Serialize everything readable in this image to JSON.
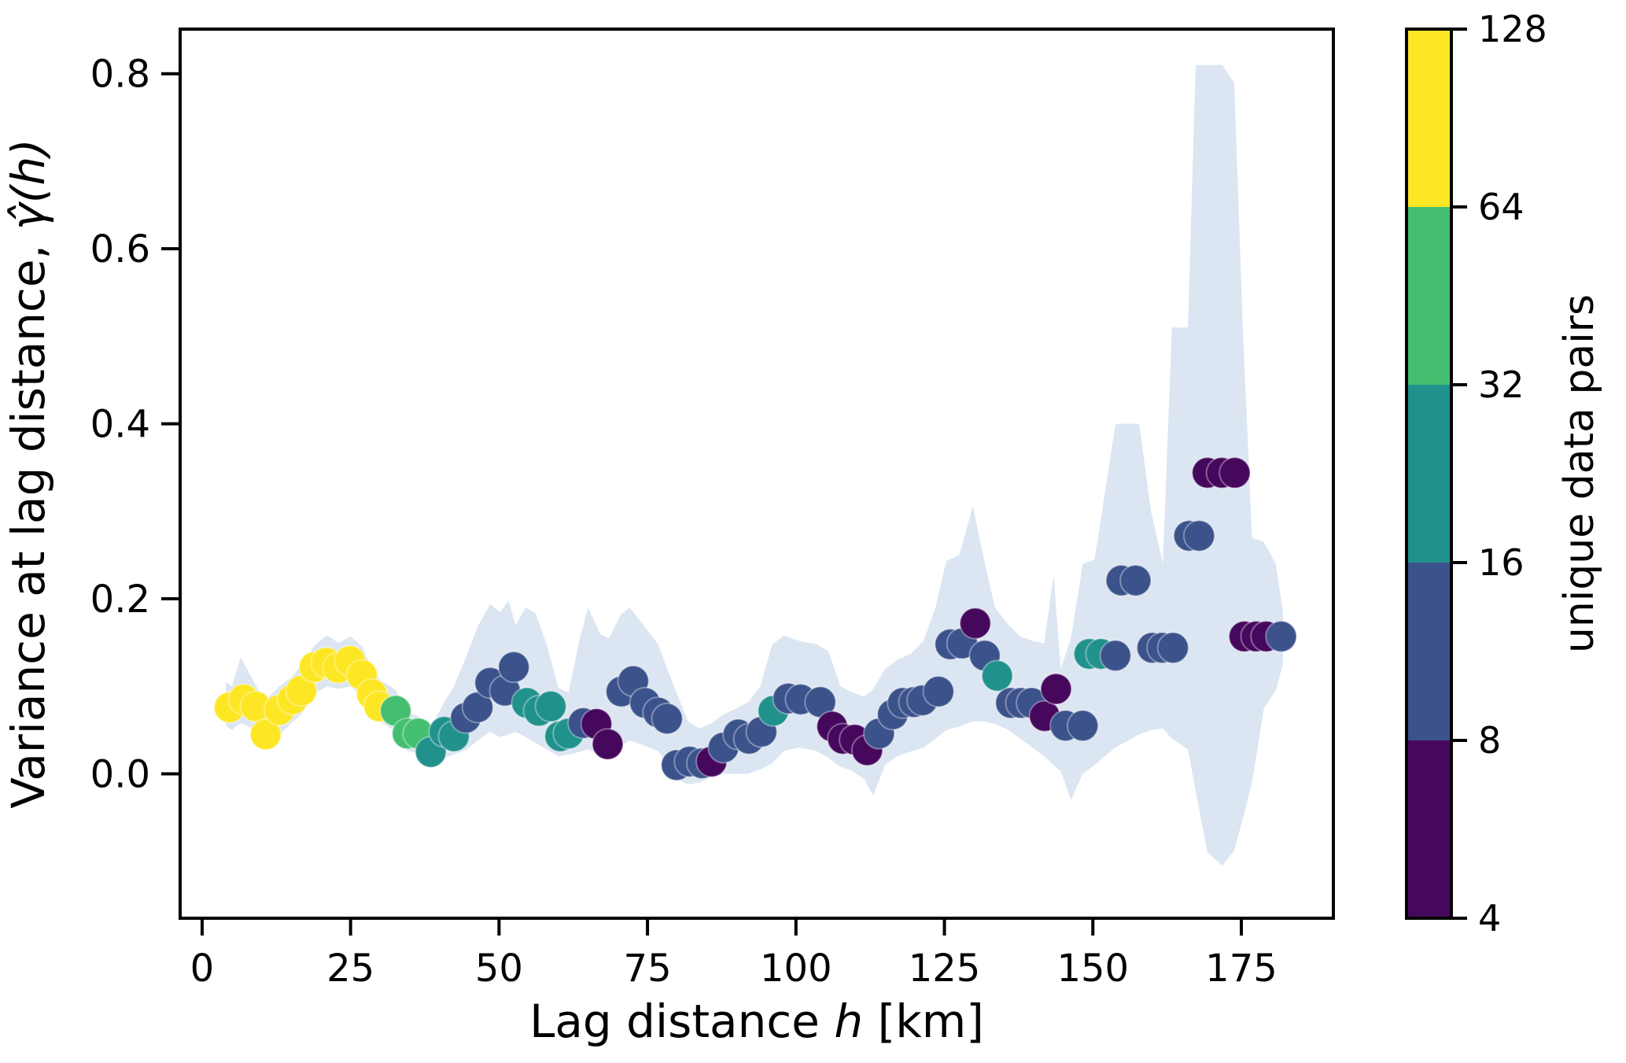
{
  "figure": {
    "background": "#ffffff"
  },
  "chart_data": {
    "type": "scatter",
    "title": "",
    "xlabel": {
      "pre": "Lag distance ",
      "italic": "h",
      "post": " [km]"
    },
    "ylabel": {
      "pre": "Variance at lag distance, ",
      "italic": "γ̂(h)"
    },
    "x_ticks": [
      0,
      25,
      50,
      75,
      100,
      125,
      150,
      175
    ],
    "y_ticks": [
      0.0,
      0.2,
      0.4,
      0.6,
      0.8
    ],
    "xlim": [
      -3.7,
      190.5
    ],
    "ylim": [
      -0.165,
      0.851
    ],
    "grid": false,
    "legend_position": "none",
    "band_color": "#dce6f2",
    "point_colors": {
      "y": "#fde725",
      "g": "#44bf70",
      "t": "#21918c",
      "b": "#3b528b",
      "p": "#46085c"
    },
    "point_color_meaning": {
      "y": "64-128 unique data pairs",
      "g": "32-64 unique data pairs",
      "t": "16-32 unique data pairs",
      "b": "8-16 unique data pairs",
      "p": "4-8 unique data pairs"
    },
    "colorbar": {
      "label": "unique data pairs",
      "scale": "log2",
      "ticks": [
        4,
        8,
        16,
        32,
        64,
        128
      ],
      "segments": [
        {
          "range": [
            4,
            8
          ],
          "color": "#46085c"
        },
        {
          "range": [
            8,
            16
          ],
          "color": "#3b528b"
        },
        {
          "range": [
            16,
            32
          ],
          "color": "#21918c"
        },
        {
          "range": [
            32,
            64
          ],
          "color": "#44bf70"
        },
        {
          "range": [
            64,
            128
          ],
          "color": "#fde725"
        }
      ]
    },
    "points": [
      [
        4.6,
        0.076,
        "y"
      ],
      [
        7.0,
        0.085,
        "y"
      ],
      [
        9.0,
        0.077,
        "y"
      ],
      [
        10.7,
        0.045,
        "y"
      ],
      [
        13.0,
        0.073,
        "y"
      ],
      [
        15.2,
        0.085,
        "y"
      ],
      [
        16.7,
        0.095,
        "y"
      ],
      [
        18.9,
        0.122,
        "y"
      ],
      [
        20.9,
        0.127,
        "y"
      ],
      [
        22.9,
        0.121,
        "y"
      ],
      [
        24.9,
        0.129,
        "y"
      ],
      [
        26.9,
        0.113,
        "y"
      ],
      [
        28.6,
        0.091,
        "y"
      ],
      [
        29.8,
        0.077,
        "y"
      ],
      [
        32.6,
        0.072,
        "g"
      ],
      [
        34.6,
        0.046,
        "g"
      ],
      [
        36.4,
        0.046,
        "g"
      ],
      [
        38.5,
        0.025,
        "t"
      ],
      [
        40.8,
        0.048,
        "t"
      ],
      [
        42.4,
        0.043,
        "t"
      ],
      [
        44.4,
        0.064,
        "b"
      ],
      [
        46.4,
        0.076,
        "b"
      ],
      [
        48.5,
        0.104,
        "b"
      ],
      [
        51.0,
        0.095,
        "b"
      ],
      [
        52.5,
        0.122,
        "b"
      ],
      [
        54.7,
        0.081,
        "t"
      ],
      [
        56.7,
        0.072,
        "t"
      ],
      [
        58.7,
        0.077,
        "t"
      ],
      [
        60.3,
        0.043,
        "t"
      ],
      [
        61.7,
        0.046,
        "t"
      ],
      [
        64.2,
        0.058,
        "b"
      ],
      [
        66.4,
        0.057,
        "p"
      ],
      [
        68.3,
        0.034,
        "p"
      ],
      [
        70.6,
        0.094,
        "b"
      ],
      [
        72.6,
        0.106,
        "b"
      ],
      [
        74.6,
        0.081,
        "b"
      ],
      [
        76.8,
        0.07,
        "b"
      ],
      [
        78.3,
        0.063,
        "b"
      ],
      [
        79.9,
        0.01,
        "b"
      ],
      [
        82.1,
        0.014,
        "b"
      ],
      [
        84.2,
        0.012,
        "b"
      ],
      [
        85.8,
        0.014,
        "p"
      ],
      [
        87.8,
        0.03,
        "b"
      ],
      [
        90.3,
        0.045,
        "b"
      ],
      [
        92.1,
        0.04,
        "b"
      ],
      [
        94.2,
        0.048,
        "b"
      ],
      [
        96.2,
        0.072,
        "t"
      ],
      [
        98.7,
        0.086,
        "b"
      ],
      [
        100.8,
        0.085,
        "b"
      ],
      [
        104.1,
        0.082,
        "b"
      ],
      [
        106.1,
        0.054,
        "p"
      ],
      [
        107.9,
        0.04,
        "p"
      ],
      [
        109.9,
        0.039,
        "p"
      ],
      [
        112.0,
        0.027,
        "p"
      ],
      [
        114.0,
        0.046,
        "b"
      ],
      [
        116.3,
        0.068,
        "b"
      ],
      [
        118.0,
        0.081,
        "b"
      ],
      [
        119.9,
        0.082,
        "b"
      ],
      [
        121.3,
        0.084,
        "b"
      ],
      [
        124.0,
        0.094,
        "b"
      ],
      [
        126.0,
        0.148,
        "b"
      ],
      [
        128.0,
        0.149,
        "b"
      ],
      [
        130.2,
        0.172,
        "p"
      ],
      [
        131.8,
        0.135,
        "b"
      ],
      [
        133.9,
        0.112,
        "t"
      ],
      [
        136.2,
        0.081,
        "b"
      ],
      [
        137.9,
        0.081,
        "b"
      ],
      [
        139.7,
        0.081,
        "b"
      ],
      [
        141.9,
        0.066,
        "p"
      ],
      [
        143.8,
        0.097,
        "p"
      ],
      [
        145.4,
        0.055,
        "b"
      ],
      [
        148.3,
        0.055,
        "b"
      ],
      [
        149.4,
        0.137,
        "t"
      ],
      [
        151.4,
        0.137,
        "t"
      ],
      [
        153.8,
        0.135,
        "b"
      ],
      [
        154.8,
        0.221,
        "b"
      ],
      [
        157.2,
        0.221,
        "b"
      ],
      [
        160.0,
        0.144,
        "b"
      ],
      [
        161.7,
        0.144,
        "b"
      ],
      [
        163.5,
        0.144,
        "b"
      ],
      [
        166.2,
        0.272,
        "b"
      ],
      [
        167.9,
        0.272,
        "b"
      ],
      [
        169.3,
        0.344,
        "p"
      ],
      [
        171.7,
        0.344,
        "p"
      ],
      [
        173.9,
        0.344,
        "p"
      ],
      [
        175.5,
        0.157,
        "p"
      ],
      [
        177.5,
        0.157,
        "p"
      ],
      [
        179.2,
        0.157,
        "p"
      ],
      [
        181.7,
        0.157,
        "b"
      ]
    ],
    "band": [
      [
        4,
        0.055,
        0.105
      ],
      [
        5,
        0.05,
        0.1
      ],
      [
        6.5,
        0.058,
        0.133
      ],
      [
        8.5,
        0.052,
        0.108
      ],
      [
        10.5,
        0.03,
        0.083
      ],
      [
        13,
        0.044,
        0.1
      ],
      [
        15,
        0.058,
        0.11
      ],
      [
        16.7,
        0.068,
        0.124
      ],
      [
        19,
        0.092,
        0.147
      ],
      [
        21,
        0.1,
        0.158
      ],
      [
        23,
        0.097,
        0.15
      ],
      [
        25,
        0.1,
        0.157
      ],
      [
        26.9,
        0.088,
        0.146
      ],
      [
        28.6,
        0.07,
        0.12
      ],
      [
        30,
        0.06,
        0.107
      ],
      [
        32.6,
        0.048,
        0.096
      ],
      [
        34.6,
        0.026,
        0.07
      ],
      [
        36.4,
        0.024,
        0.066
      ],
      [
        38.5,
        0.01,
        0.053
      ],
      [
        40.8,
        0.018,
        0.082
      ],
      [
        42.4,
        0.022,
        0.1
      ],
      [
        44.4,
        0.027,
        0.133
      ],
      [
        46.4,
        0.038,
        0.168
      ],
      [
        48.5,
        0.048,
        0.194
      ],
      [
        50.2,
        0.042,
        0.185
      ],
      [
        51.6,
        0.045,
        0.198
      ],
      [
        52.8,
        0.048,
        0.17
      ],
      [
        54.5,
        0.042,
        0.19
      ],
      [
        56.2,
        0.035,
        0.183
      ],
      [
        58,
        0.028,
        0.148
      ],
      [
        60,
        0.02,
        0.098
      ],
      [
        61.7,
        0.022,
        0.093
      ],
      [
        63.5,
        0.025,
        0.152
      ],
      [
        65,
        0.028,
        0.19
      ],
      [
        67,
        0.022,
        0.16
      ],
      [
        68.5,
        0.02,
        0.155
      ],
      [
        70.6,
        0.032,
        0.183
      ],
      [
        72,
        0.038,
        0.19
      ],
      [
        74.2,
        0.033,
        0.171
      ],
      [
        76.8,
        0.026,
        0.148
      ],
      [
        78.3,
        0.012,
        0.12
      ],
      [
        79.9,
        -0.006,
        0.093
      ],
      [
        81.8,
        -0.012,
        0.06
      ],
      [
        83.8,
        -0.01,
        0.052
      ],
      [
        85.8,
        -0.004,
        0.058
      ],
      [
        87.8,
        0,
        0.068
      ],
      [
        90,
        0,
        0.075
      ],
      [
        92,
        0,
        0.082
      ],
      [
        94,
        0.005,
        0.1
      ],
      [
        96,
        0.012,
        0.148
      ],
      [
        98,
        0.026,
        0.158
      ],
      [
        100.5,
        0.03,
        0.152
      ],
      [
        103.5,
        0.026,
        0.148
      ],
      [
        105.5,
        0.018,
        0.14
      ],
      [
        107.5,
        0.008,
        0.1
      ],
      [
        109.5,
        0.003,
        0.093
      ],
      [
        111.5,
        -0.006,
        0.088
      ],
      [
        113,
        -0.025,
        0.097
      ],
      [
        115,
        0.01,
        0.12
      ],
      [
        117,
        0.02,
        0.13
      ],
      [
        119.5,
        0.026,
        0.138
      ],
      [
        121.5,
        0.03,
        0.152
      ],
      [
        123.5,
        0.04,
        0.19
      ],
      [
        125.3,
        0.05,
        0.243
      ],
      [
        127.5,
        0.054,
        0.25
      ],
      [
        129.8,
        0.06,
        0.306
      ],
      [
        131.5,
        0.06,
        0.25
      ],
      [
        133.5,
        0.057,
        0.19
      ],
      [
        135.8,
        0.05,
        0.17
      ],
      [
        137.8,
        0.04,
        0.157
      ],
      [
        139.8,
        0.03,
        0.152
      ],
      [
        141.8,
        0.02,
        0.149
      ],
      [
        143.4,
        0.01,
        0.227
      ],
      [
        144.6,
        0.003,
        0.12
      ],
      [
        146.3,
        -0.03,
        0.155
      ],
      [
        148.3,
        0,
        0.24
      ],
      [
        150.3,
        0.01,
        0.245
      ],
      [
        152,
        0.02,
        0.32
      ],
      [
        153.8,
        0.03,
        0.4
      ],
      [
        157.8,
        0.045,
        0.4
      ],
      [
        159.8,
        0.05,
        0.3
      ],
      [
        161.8,
        0.052,
        0.24
      ],
      [
        163.3,
        0.04,
        0.51
      ],
      [
        166,
        0.028,
        0.51
      ],
      [
        167.3,
        -0.02,
        0.81
      ],
      [
        169.3,
        -0.09,
        0.81
      ],
      [
        171.8,
        -0.105,
        0.81
      ],
      [
        173.8,
        -0.088,
        0.79
      ],
      [
        175.3,
        -0.05,
        0.5
      ],
      [
        176.8,
        -0.01,
        0.27
      ],
      [
        178.8,
        0.075,
        0.265
      ],
      [
        180.8,
        0.095,
        0.24
      ],
      [
        182,
        0.125,
        0.185
      ]
    ]
  }
}
